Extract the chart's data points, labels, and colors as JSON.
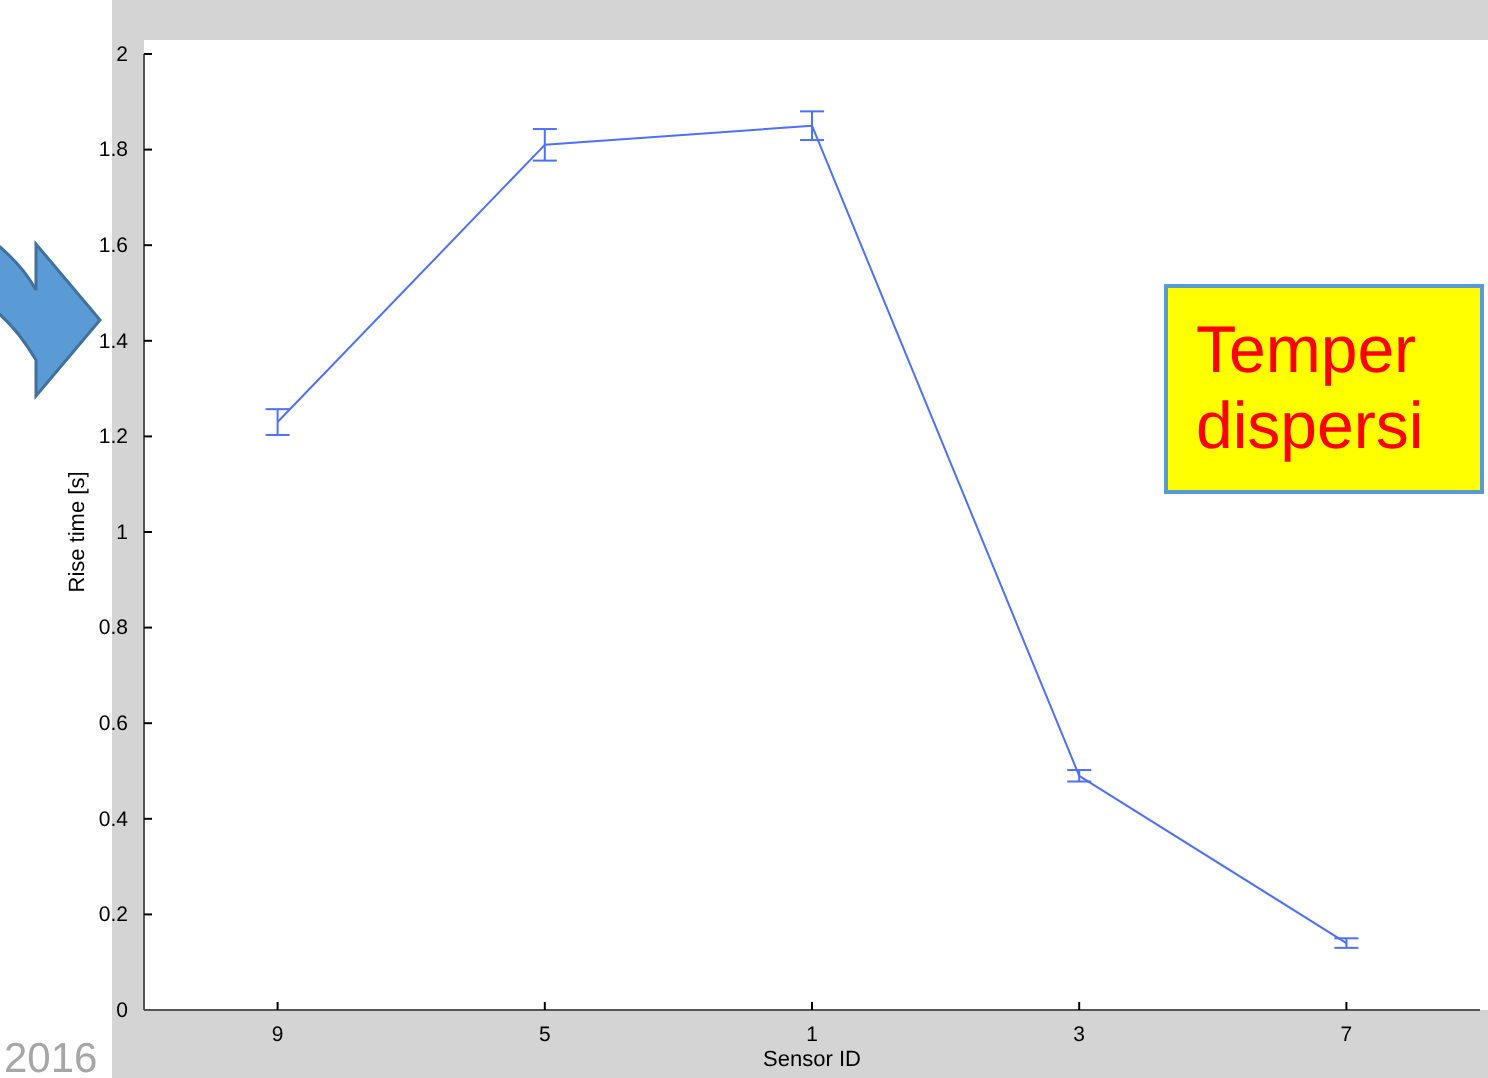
{
  "chart_data": {
    "type": "line",
    "xlabel": "Sensor ID",
    "ylabel": "Rise time [s]",
    "categories": [
      "9",
      "5",
      "1",
      "3",
      "7"
    ],
    "series": [
      {
        "color": "#4f6fff",
        "values": [
          1.23,
          1.81,
          1.85,
          0.49,
          0.14
        ],
        "errors": [
          0.027,
          0.033,
          0.03,
          0.012,
          0.01
        ]
      }
    ],
    "ylim": [
      0,
      2
    ],
    "yticks": [
      0,
      0.2,
      0.4,
      0.6,
      0.8,
      1,
      1.2,
      1.4,
      1.6,
      1.8,
      2
    ],
    "marker": "none",
    "line_style": "solid",
    "annotations": [
      "Temper\ndispersi",
      "2016"
    ]
  }
}
